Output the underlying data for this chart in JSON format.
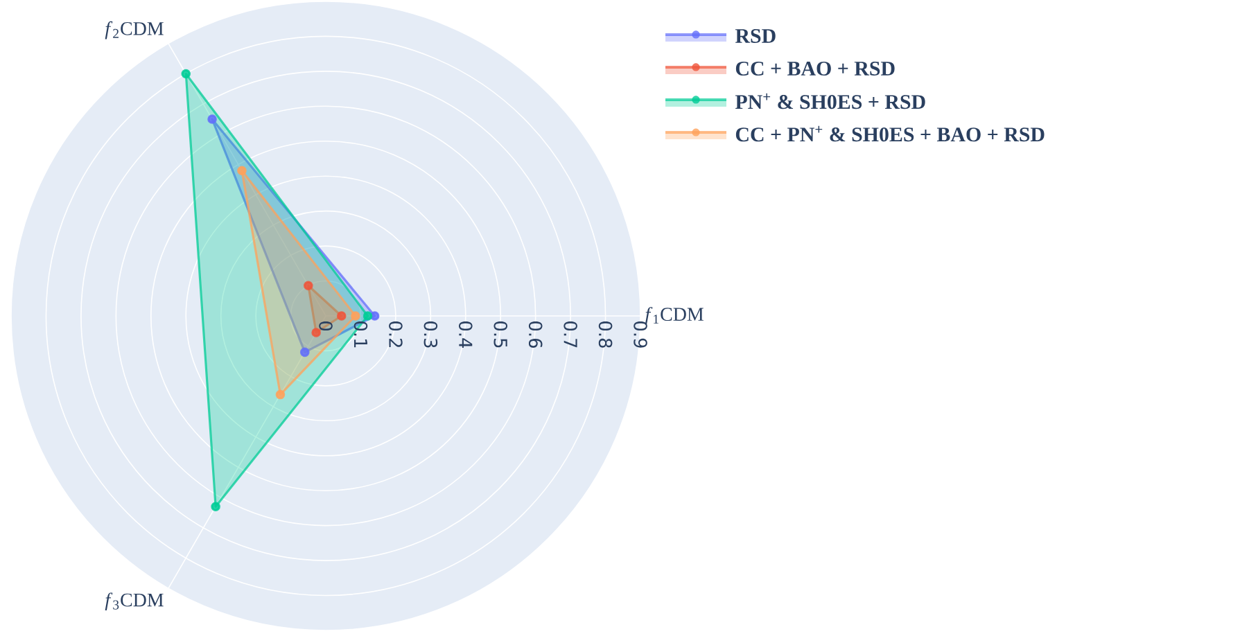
{
  "chart_data": {
    "type": "radar",
    "categories": [
      "*f*$_{1}$CDM",
      "*f*$_{3}$CDM",
      "*f*$_{2}$CDM"
    ],
    "ylim": [
      0,
      0.9
    ],
    "yticks": [
      0,
      0.1,
      0.2,
      0.3,
      0.4,
      0.5,
      0.6,
      0.7,
      0.8,
      0.9
    ],
    "grid": true,
    "marker": "circle",
    "legend": "top right",
    "series": [
      {
        "name": "RSD",
        "color": "#636efa",
        "values": [
          0.14,
          0.12,
          0.65
        ]
      },
      {
        "name": "CC + BAO + RSD",
        "color": "#ef553b",
        "values": [
          0.045,
          0.055,
          0.1
        ]
      },
      {
        "name": "PN$^{+}$ & SH0ES + RSD",
        "color": "#00cc96",
        "values": [
          0.12,
          0.63,
          0.8
        ]
      },
      {
        "name": "CC + PN$^{+}$ & SH0ES + BAO + RSD",
        "color": "#ffa15a",
        "values": [
          0.085,
          0.26,
          0.48
        ]
      }
    ]
  }
}
